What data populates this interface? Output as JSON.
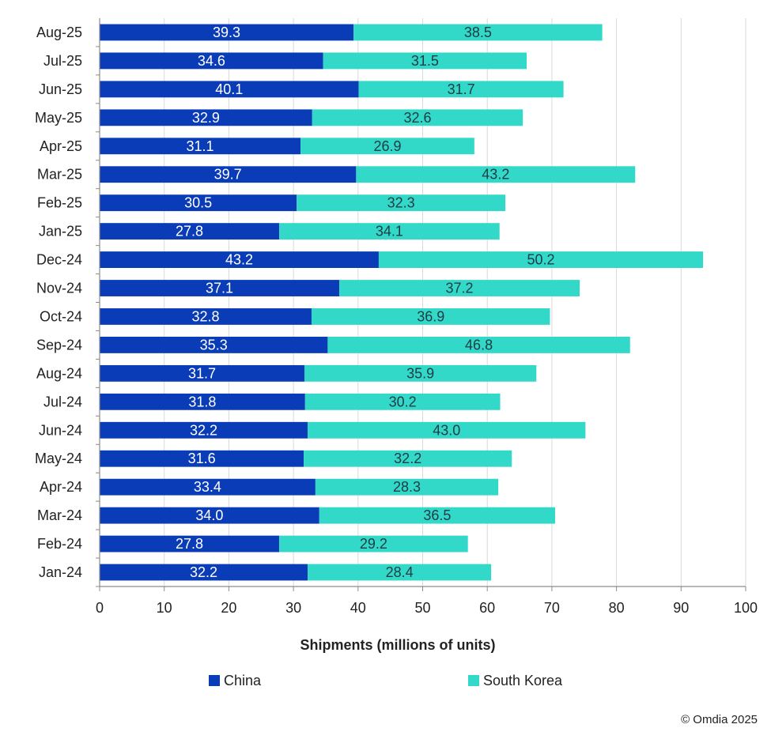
{
  "chart_data": {
    "type": "bar",
    "orientation": "horizontal",
    "stacked": true,
    "categories": [
      "Jan-24",
      "Feb-24",
      "Mar-24",
      "Apr-24",
      "May-24",
      "Jun-24",
      "Jul-24",
      "Aug-24",
      "Sep-24",
      "Oct-24",
      "Nov-24",
      "Dec-24",
      "Jan-25",
      "Feb-25",
      "Mar-25",
      "Apr-25",
      "May-25",
      "Jun-25",
      "Jul-25",
      "Aug-25"
    ],
    "series": [
      {
        "name": "China",
        "color": "#0a3cb8",
        "label_color": "#ffffff",
        "values": [
          32.2,
          27.8,
          34.0,
          33.4,
          31.6,
          32.2,
          31.8,
          31.7,
          35.3,
          32.8,
          37.1,
          43.2,
          27.8,
          30.5,
          39.7,
          31.1,
          32.9,
          40.1,
          34.6,
          39.3
        ]
      },
      {
        "name": "South Korea",
        "color": "#33d9c8",
        "label_color": "#1f3b44",
        "values": [
          28.4,
          29.2,
          36.5,
          28.3,
          32.2,
          43.0,
          30.2,
          35.9,
          46.8,
          36.9,
          37.2,
          50.2,
          34.1,
          32.3,
          43.2,
          26.9,
          32.6,
          31.7,
          31.5,
          38.5
        ]
      }
    ],
    "xlabel": "Shipments (millions of units)",
    "ylabel": "",
    "xlim": [
      0,
      100
    ],
    "ticks": [
      "0",
      "10",
      "20",
      "30",
      "40",
      "50",
      "60",
      "70",
      "80",
      "90",
      "100"
    ],
    "grid": "vertical",
    "legend_position": "bottom",
    "category_order": "bottom-to-top"
  },
  "footer": {
    "copyright": "© Omdia 2025"
  }
}
